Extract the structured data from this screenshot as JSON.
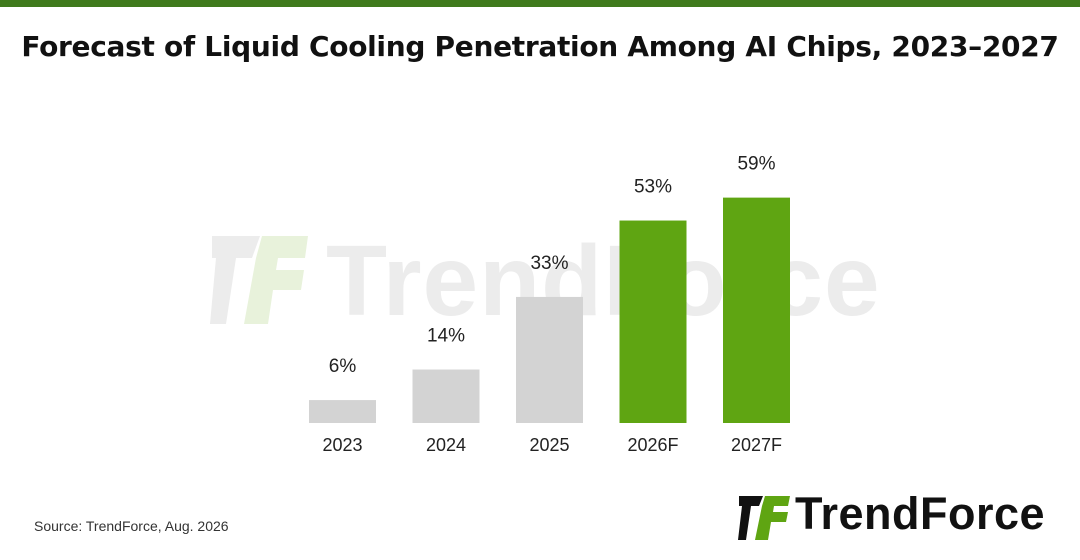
{
  "title": "Forecast of Liquid Cooling Penetration Among AI Chips, 2023–2027",
  "source": "Source: TrendForce, Aug. 2026",
  "brand": {
    "name": "TrendForce",
    "logo_icon": "trendforce-logo-icon"
  },
  "watermark": {
    "text": "TrendForce"
  },
  "colors": {
    "accent_bar": "#3f7a1c",
    "actual": "#d3d3d3",
    "forecast": "#5fa512",
    "watermark_green": "#e8f2db",
    "watermark_gray": "#ececec",
    "logo_green": "#5fa512",
    "logo_dark": "#111111"
  },
  "chart_data": {
    "type": "bar",
    "categories": [
      "2023",
      "2024",
      "2025",
      "2026F",
      "2027F"
    ],
    "values": [
      6,
      14,
      33,
      53,
      59
    ],
    "value_labels": [
      "6%",
      "14%",
      "33%",
      "53%",
      "59%"
    ],
    "forecast": [
      false,
      false,
      false,
      true,
      true
    ],
    "title": "Forecast of Liquid Cooling Penetration Among AI Chips, 2023–2027",
    "xlabel": "",
    "ylabel": "",
    "ylim": [
      0,
      100
    ],
    "unit": "%",
    "grid": false,
    "legend": "none"
  }
}
